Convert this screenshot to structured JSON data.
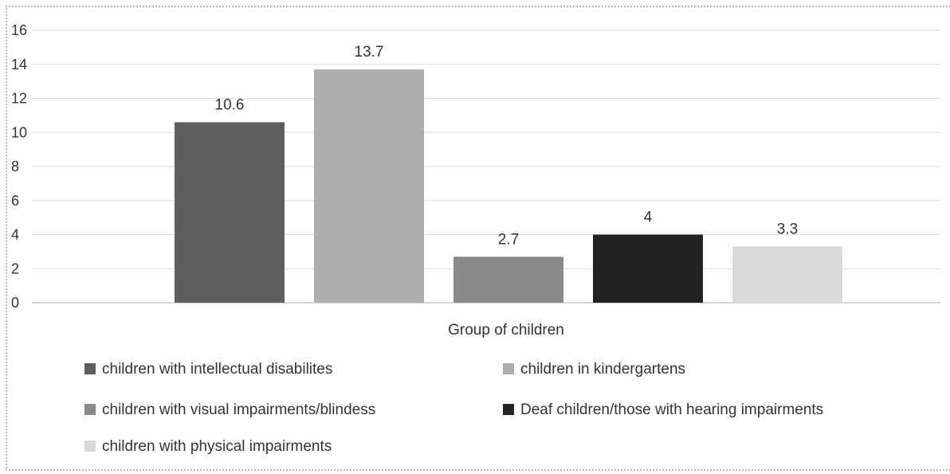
{
  "chart_data": {
    "type": "bar",
    "title": "",
    "xlabel": "Group of children",
    "ylabel": "",
    "ylim": [
      0,
      16
    ],
    "yticks": [
      0,
      2,
      4,
      6,
      8,
      10,
      12,
      14,
      16
    ],
    "grid": true,
    "legend_position": "bottom",
    "series": [
      {
        "name": "children with intellectual disabilites",
        "value": 10.6,
        "label": "10.6",
        "color": "#5e5e5e"
      },
      {
        "name": "children in kindergartens",
        "value": 13.7,
        "label": "13.7",
        "color": "#adadad"
      },
      {
        "name": "children with visual impairments/blindess",
        "value": 2.7,
        "label": "2.7",
        "color": "#8a8a8a"
      },
      {
        "name": "Deaf children/those with hearing impairments",
        "value": 4,
        "label": "4",
        "color": "#222222"
      },
      {
        "name": "children with physical impairments",
        "value": 3.3,
        "label": "3.3",
        "color": "#d9d9d9"
      }
    ]
  }
}
